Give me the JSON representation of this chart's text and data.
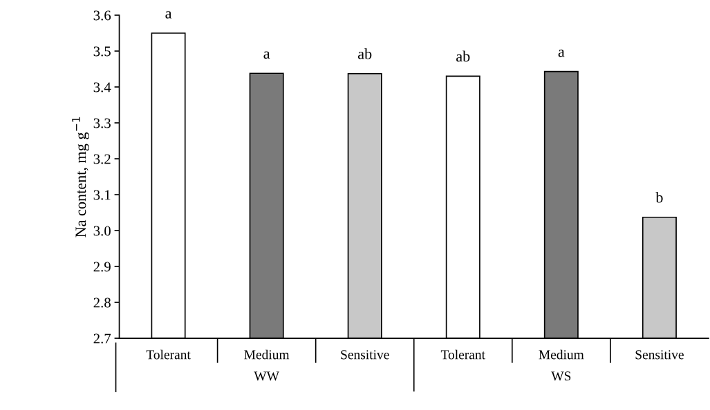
{
  "chart_data": {
    "type": "bar",
    "ylabel": "Na content, mg g$^{−1}$",
    "categories": [
      "Tolerant",
      "Medium",
      "Sensitive",
      "Tolerant",
      "Medium",
      "Sensitive"
    ],
    "values": [
      3.55,
      3.438,
      3.437,
      3.43,
      3.443,
      3.037
    ],
    "colors": [
      "#ffffff",
      "#7a7a7a",
      "#c8c8c8",
      "#ffffff",
      "#7a7a7a",
      "#c8c8c8"
    ],
    "ylim": [
      2.7,
      3.6
    ],
    "yticks": [
      2.7,
      2.8,
      2.9,
      {
        "value": 3.0,
        "label": "3.0"
      },
      3.1,
      3.2,
      3.3,
      3.4,
      3.5,
      3.6
    ],
    "grid": false,
    "annotations": [
      "a",
      "a",
      "ab",
      "ab",
      "a",
      "b",
      "WW",
      "WS"
    ]
  }
}
